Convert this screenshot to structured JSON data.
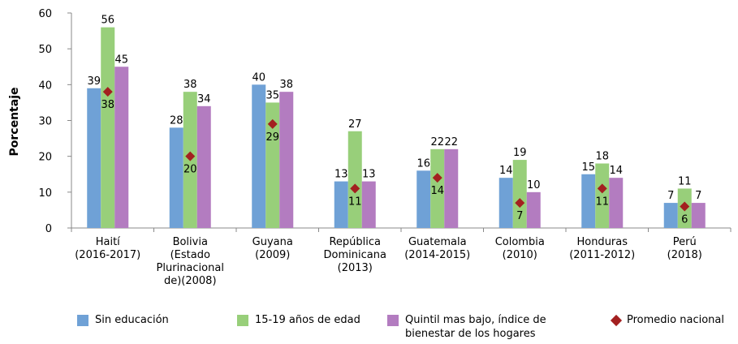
{
  "chart_data": {
    "type": "bar",
    "y_label": "Porcentaje",
    "categories": [
      [
        "Haití",
        "(2016-2017)"
      ],
      [
        "Bolivia",
        "(Estado",
        "Plurinacional",
        "de)(2008)"
      ],
      [
        "Guyana",
        "(2009)"
      ],
      [
        "República",
        "Dominicana",
        "(2013)"
      ],
      [
        "Guatemala",
        "(2014-2015)"
      ],
      [
        "Colombia",
        "(2010)"
      ],
      [
        "Honduras",
        "(2011-2012)"
      ],
      [
        "Perú",
        "(2018)"
      ]
    ],
    "series": [
      {
        "name": "Sin educación",
        "color": "#6fa1d6",
        "values": [
          39,
          28,
          40,
          13,
          16,
          14,
          15,
          7
        ]
      },
      {
        "name": "15-19 años de edad",
        "color": "#98cf7a",
        "values": [
          56,
          38,
          35,
          27,
          22,
          19,
          18,
          11
        ]
      },
      {
        "name": "Quintil mas bajo, índice de bienestar de los hogares",
        "color": "#b37cc0",
        "values": [
          45,
          34,
          38,
          13,
          22,
          10,
          14,
          7
        ]
      },
      {
        "name": "Promedio nacional",
        "color": "#a32020",
        "marker": "diamond",
        "values": [
          38,
          20,
          29,
          11,
          14,
          7,
          11,
          6
        ]
      }
    ],
    "ylim": [
      0,
      60
    ],
    "yticks": [
      0,
      10,
      20,
      30,
      40,
      50,
      60
    ]
  }
}
